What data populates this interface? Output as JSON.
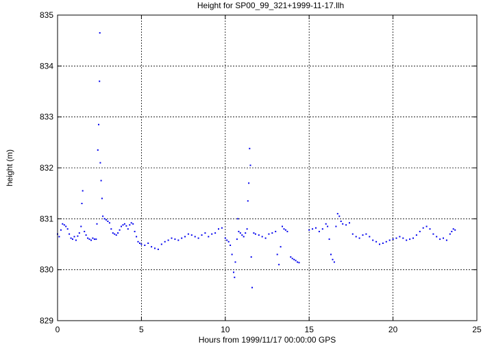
{
  "chart_data": {
    "type": "scatter",
    "title": "Height for SP00_99_321+1999-11-17.llh",
    "xlabel": "Hours from 1999/11/17 00:00:00 GPS",
    "ylabel": "height (m)",
    "xlim": [
      0,
      25
    ],
    "ylim": [
      829,
      835
    ],
    "xticks": [
      0,
      5,
      10,
      15,
      20,
      25
    ],
    "yticks": [
      829,
      830,
      831,
      832,
      833,
      834,
      835
    ],
    "grid": true,
    "marker_color": "#0000ee",
    "series": [
      {
        "points": [
          [
            0.0,
            830.7
          ],
          [
            0.1,
            830.65
          ],
          [
            0.2,
            830.78
          ],
          [
            0.3,
            830.9
          ],
          [
            0.4,
            830.88
          ],
          [
            0.5,
            830.85
          ],
          [
            0.6,
            830.8
          ],
          [
            0.7,
            830.7
          ],
          [
            0.8,
            830.62
          ],
          [
            0.9,
            830.6
          ],
          [
            1.0,
            830.65
          ],
          [
            1.1,
            830.58
          ],
          [
            1.2,
            830.66
          ],
          [
            1.3,
            830.72
          ],
          [
            1.4,
            830.85
          ],
          [
            1.45,
            831.3
          ],
          [
            1.5,
            831.55
          ],
          [
            1.6,
            830.75
          ],
          [
            1.7,
            830.68
          ],
          [
            1.8,
            830.62
          ],
          [
            1.9,
            830.6
          ],
          [
            2.0,
            830.58
          ],
          [
            2.1,
            830.62
          ],
          [
            2.2,
            830.6
          ],
          [
            2.3,
            830.6
          ],
          [
            2.35,
            830.9
          ],
          [
            2.4,
            832.35
          ],
          [
            2.45,
            832.85
          ],
          [
            2.5,
            833.7
          ],
          [
            2.52,
            834.65
          ],
          [
            2.55,
            832.1
          ],
          [
            2.6,
            831.75
          ],
          [
            2.65,
            831.4
          ],
          [
            2.7,
            831.05
          ],
          [
            2.8,
            831.0
          ],
          [
            2.9,
            830.98
          ],
          [
            3.0,
            830.95
          ],
          [
            3.1,
            830.92
          ],
          [
            3.2,
            830.8
          ],
          [
            3.3,
            830.72
          ],
          [
            3.4,
            830.7
          ],
          [
            3.5,
            830.68
          ],
          [
            3.6,
            830.72
          ],
          [
            3.7,
            830.78
          ],
          [
            3.8,
            830.85
          ],
          [
            3.9,
            830.88
          ],
          [
            4.0,
            830.9
          ],
          [
            4.1,
            830.86
          ],
          [
            4.2,
            830.8
          ],
          [
            4.3,
            830.88
          ],
          [
            4.4,
            830.92
          ],
          [
            4.5,
            830.9
          ],
          [
            4.6,
            830.75
          ],
          [
            4.7,
            830.65
          ],
          [
            4.8,
            830.55
          ],
          [
            4.9,
            830.52
          ],
          [
            5.0,
            830.5
          ],
          [
            5.2,
            830.48
          ],
          [
            5.4,
            830.52
          ],
          [
            5.6,
            830.45
          ],
          [
            5.8,
            830.42
          ],
          [
            6.0,
            830.4
          ],
          [
            6.2,
            830.5
          ],
          [
            6.4,
            830.55
          ],
          [
            6.6,
            830.58
          ],
          [
            6.8,
            830.62
          ],
          [
            7.0,
            830.6
          ],
          [
            7.2,
            830.58
          ],
          [
            7.4,
            830.62
          ],
          [
            7.6,
            830.65
          ],
          [
            7.8,
            830.7
          ],
          [
            8.0,
            830.68
          ],
          [
            8.2,
            830.65
          ],
          [
            8.4,
            830.62
          ],
          [
            8.6,
            830.68
          ],
          [
            8.8,
            830.72
          ],
          [
            9.0,
            830.65
          ],
          [
            9.2,
            830.7
          ],
          [
            9.4,
            830.72
          ],
          [
            9.6,
            830.8
          ],
          [
            9.8,
            830.82
          ],
          [
            10.0,
            830.62
          ],
          [
            10.1,
            830.58
          ],
          [
            10.2,
            830.55
          ],
          [
            10.3,
            830.48
          ],
          [
            10.4,
            830.3
          ],
          [
            10.5,
            829.95
          ],
          [
            10.55,
            829.85
          ],
          [
            10.6,
            830.15
          ],
          [
            10.7,
            830.6
          ],
          [
            10.75,
            831.0
          ],
          [
            10.8,
            830.75
          ],
          [
            10.9,
            830.72
          ],
          [
            11.0,
            830.68
          ],
          [
            11.1,
            830.65
          ],
          [
            11.2,
            830.72
          ],
          [
            11.3,
            830.8
          ],
          [
            11.35,
            831.35
          ],
          [
            11.4,
            831.7
          ],
          [
            11.45,
            832.38
          ],
          [
            11.5,
            832.05
          ],
          [
            11.55,
            830.25
          ],
          [
            11.6,
            829.65
          ],
          [
            11.7,
            830.72
          ],
          [
            11.8,
            830.7
          ],
          [
            12.0,
            830.68
          ],
          [
            12.2,
            830.65
          ],
          [
            12.4,
            830.62
          ],
          [
            12.6,
            830.7
          ],
          [
            12.8,
            830.72
          ],
          [
            13.0,
            830.75
          ],
          [
            13.1,
            830.3
          ],
          [
            13.2,
            830.1
          ],
          [
            13.3,
            830.45
          ],
          [
            13.4,
            830.85
          ],
          [
            13.5,
            830.8
          ],
          [
            13.6,
            830.78
          ],
          [
            13.7,
            830.75
          ],
          [
            13.9,
            830.25
          ],
          [
            14.0,
            830.22
          ],
          [
            14.1,
            830.2
          ],
          [
            14.2,
            830.18
          ],
          [
            14.3,
            830.15
          ],
          [
            14.4,
            830.14
          ],
          [
            15.0,
            830.78
          ],
          [
            15.2,
            830.8
          ],
          [
            15.4,
            830.82
          ],
          [
            15.6,
            830.75
          ],
          [
            15.8,
            830.8
          ],
          [
            16.0,
            830.9
          ],
          [
            16.1,
            830.85
          ],
          [
            16.2,
            830.6
          ],
          [
            16.3,
            830.3
          ],
          [
            16.4,
            830.2
          ],
          [
            16.5,
            830.15
          ],
          [
            16.6,
            830.85
          ],
          [
            16.7,
            831.1
          ],
          [
            16.8,
            831.05
          ],
          [
            16.9,
            830.95
          ],
          [
            17.0,
            830.9
          ],
          [
            17.2,
            830.88
          ],
          [
            17.4,
            830.92
          ],
          [
            17.6,
            830.7
          ],
          [
            17.8,
            830.65
          ],
          [
            18.0,
            830.62
          ],
          [
            18.2,
            830.68
          ],
          [
            18.4,
            830.7
          ],
          [
            18.6,
            830.65
          ],
          [
            18.8,
            830.58
          ],
          [
            19.0,
            830.55
          ],
          [
            19.2,
            830.5
          ],
          [
            19.4,
            830.52
          ],
          [
            19.6,
            830.55
          ],
          [
            19.8,
            830.58
          ],
          [
            20.0,
            830.6
          ],
          [
            20.2,
            830.62
          ],
          [
            20.4,
            830.65
          ],
          [
            20.6,
            830.62
          ],
          [
            20.8,
            830.58
          ],
          [
            21.0,
            830.6
          ],
          [
            21.2,
            830.62
          ],
          [
            21.4,
            830.68
          ],
          [
            21.6,
            830.75
          ],
          [
            21.8,
            830.82
          ],
          [
            22.0,
            830.85
          ],
          [
            22.2,
            830.8
          ],
          [
            22.4,
            830.7
          ],
          [
            22.6,
            830.65
          ],
          [
            22.8,
            830.6
          ],
          [
            23.0,
            830.62
          ],
          [
            23.2,
            830.58
          ],
          [
            23.4,
            830.7
          ],
          [
            23.5,
            830.75
          ],
          [
            23.6,
            830.8
          ],
          [
            23.7,
            830.78
          ]
        ]
      }
    ]
  }
}
